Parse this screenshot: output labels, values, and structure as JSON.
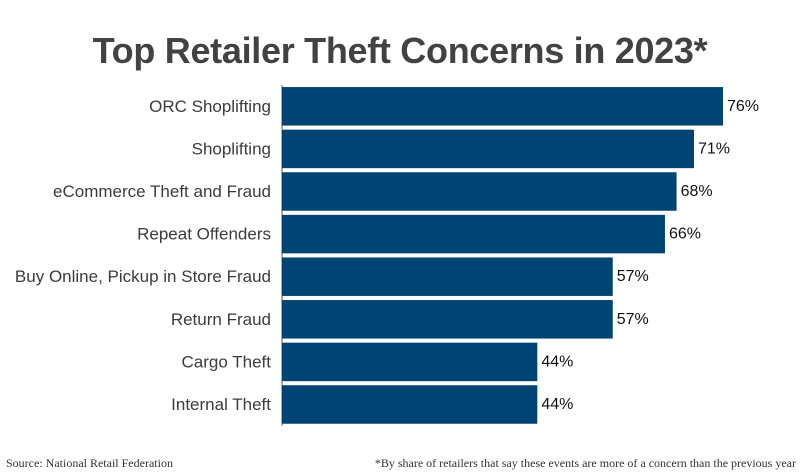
{
  "chart_data": {
    "type": "bar",
    "orientation": "horizontal",
    "title": "Top Retailer Theft Concerns in 2023*",
    "categories": [
      "ORC Shoplifting",
      "Shoplifting",
      "eCommerce Theft and Fraud",
      "Repeat Offenders",
      "Buy Online, Pickup in Store Fraud",
      "Return Fraud",
      "Cargo Theft",
      "Internal Theft"
    ],
    "values": [
      76,
      71,
      68,
      66,
      57,
      57,
      44,
      44
    ],
    "value_labels": [
      "76%",
      "71%",
      "68%",
      "66%",
      "57%",
      "57%",
      "44%",
      "44%"
    ],
    "xlim": [
      0,
      76
    ],
    "grid": false,
    "legend": "none",
    "bar_color": "#004474"
  },
  "footer": {
    "source": "Source: National Retail Federation",
    "footnote": "*By share of retailers that say these events are more of a concern than the previous year"
  }
}
